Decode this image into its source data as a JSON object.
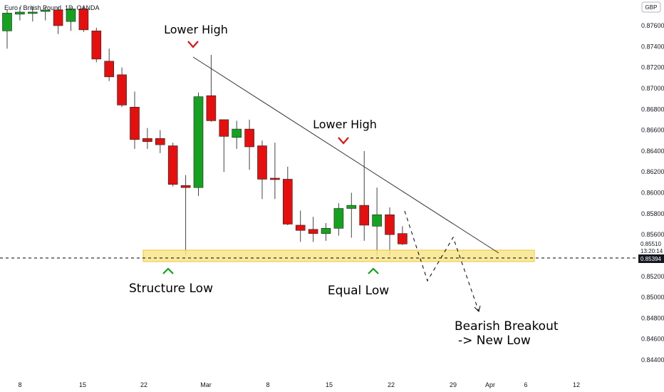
{
  "header": {
    "symbol_title": "Euro / British Pound, 1D, OANDA",
    "currency_button": "GBP"
  },
  "price_labels": {
    "current_price": "0.85510",
    "countdown": "13:20:14",
    "level_price": "0.85394"
  },
  "annotations": {
    "lower_high_1": "Lower High",
    "lower_high_2": "Lower High",
    "structure_low": "Structure Low",
    "equal_low": "Equal Low",
    "breakout_line1": "Bearish Breakout",
    "breakout_line2": "-> New Low"
  },
  "colors": {
    "up": "#16a120",
    "down": "#e41010",
    "zone_fill": "#f8e58c",
    "zone_stroke": "#f1c232",
    "marker_red": "#e41010",
    "marker_green": "#16a120",
    "badge_bg": "#131722"
  },
  "chart_data": {
    "type": "candlestick",
    "title": "Euro / British Pound, 1D, OANDA",
    "ylim": [
      0.843,
      0.8775
    ],
    "x_tick_labels": [
      "8",
      "15",
      "22",
      "Mar",
      "8",
      "15",
      "22",
      "29",
      "Apr",
      "6",
      "12"
    ],
    "y_tick_labels": [
      "0.87600",
      "0.87400",
      "0.87200",
      "0.87000",
      "0.86800",
      "0.86600",
      "0.86400",
      "0.86200",
      "0.86000",
      "0.85800",
      "0.85600",
      "0.85200",
      "0.85000",
      "0.84800",
      "0.84600",
      "0.84400"
    ],
    "candles": [
      {
        "date": "2021-02-03",
        "o": 0.8755,
        "h": 0.8775,
        "l": 0.8738,
        "c": 0.8772
      },
      {
        "date": "2021-02-04",
        "o": 0.8771,
        "h": 0.8778,
        "l": 0.8765,
        "c": 0.8773
      },
      {
        "date": "2021-02-05",
        "o": 0.8772,
        "h": 0.8778,
        "l": 0.8764,
        "c": 0.8773
      },
      {
        "date": "2021-02-08",
        "o": 0.8774,
        "h": 0.8778,
        "l": 0.8765,
        "c": 0.8775
      },
      {
        "date": "2021-02-09",
        "o": 0.8775,
        "h": 0.8778,
        "l": 0.8752,
        "c": 0.876
      },
      {
        "date": "2021-02-10",
        "o": 0.8764,
        "h": 0.8778,
        "l": 0.8755,
        "c": 0.8776
      },
      {
        "date": "2021-02-11",
        "o": 0.8776,
        "h": 0.8778,
        "l": 0.8754,
        "c": 0.8756
      },
      {
        "date": "2021-02-12",
        "o": 0.8755,
        "h": 0.8758,
        "l": 0.8725,
        "c": 0.8728
      },
      {
        "date": "2021-02-15",
        "o": 0.8726,
        "h": 0.8738,
        "l": 0.8707,
        "c": 0.8711
      },
      {
        "date": "2021-02-16",
        "o": 0.8713,
        "h": 0.872,
        "l": 0.8682,
        "c": 0.8684
      },
      {
        "date": "2021-02-17",
        "o": 0.8682,
        "h": 0.8697,
        "l": 0.8642,
        "c": 0.8651
      },
      {
        "date": "2021-02-18",
        "o": 0.8652,
        "h": 0.8662,
        "l": 0.8642,
        "c": 0.8649
      },
      {
        "date": "2021-02-19",
        "o": 0.8652,
        "h": 0.866,
        "l": 0.8638,
        "c": 0.8646
      },
      {
        "date": "2021-02-22",
        "o": 0.8645,
        "h": 0.8648,
        "l": 0.8606,
        "c": 0.8608
      },
      {
        "date": "2021-02-23",
        "o": 0.8607,
        "h": 0.8617,
        "l": 0.854,
        "c": 0.8605
      },
      {
        "date": "2021-02-24",
        "o": 0.8605,
        "h": 0.8696,
        "l": 0.8597,
        "c": 0.8692
      },
      {
        "date": "2021-02-25",
        "o": 0.8693,
        "h": 0.8732,
        "l": 0.8668,
        "c": 0.8669
      },
      {
        "date": "2021-02-26",
        "o": 0.867,
        "h": 0.867,
        "l": 0.862,
        "c": 0.8654
      },
      {
        "date": "2021-03-01",
        "o": 0.8653,
        "h": 0.8669,
        "l": 0.8642,
        "c": 0.8661
      },
      {
        "date": "2021-03-02",
        "o": 0.8661,
        "h": 0.867,
        "l": 0.8622,
        "c": 0.8644
      },
      {
        "date": "2021-03-03",
        "o": 0.8645,
        "h": 0.865,
        "l": 0.8594,
        "c": 0.8613
      },
      {
        "date": "2021-03-04",
        "o": 0.8614,
        "h": 0.8648,
        "l": 0.8594,
        "c": 0.8613
      },
      {
        "date": "2021-03-05",
        "o": 0.8613,
        "h": 0.8625,
        "l": 0.8569,
        "c": 0.857
      },
      {
        "date": "2021-03-08",
        "o": 0.8569,
        "h": 0.8583,
        "l": 0.8553,
        "c": 0.8564
      },
      {
        "date": "2021-03-09",
        "o": 0.8565,
        "h": 0.8577,
        "l": 0.8553,
        "c": 0.8561
      },
      {
        "date": "2021-03-10",
        "o": 0.8561,
        "h": 0.8571,
        "l": 0.8554,
        "c": 0.8566
      },
      {
        "date": "2021-03-11",
        "o": 0.8566,
        "h": 0.859,
        "l": 0.8559,
        "c": 0.8585
      },
      {
        "date": "2021-03-12",
        "o": 0.8585,
        "h": 0.86,
        "l": 0.8557,
        "c": 0.8588
      },
      {
        "date": "2021-03-15",
        "o": 0.8588,
        "h": 0.864,
        "l": 0.8554,
        "c": 0.8569
      },
      {
        "date": "2021-03-16",
        "o": 0.8568,
        "h": 0.8605,
        "l": 0.854,
        "c": 0.8579
      },
      {
        "date": "2021-03-17",
        "o": 0.8579,
        "h": 0.8586,
        "l": 0.854,
        "c": 0.856
      },
      {
        "date": "2021-03-18",
        "o": 0.8561,
        "h": 0.8568,
        "l": 0.855,
        "c": 0.8551
      }
    ],
    "support_zone": [
      0.8537,
      0.8549
    ],
    "horizontal_level": 0.85394,
    "trendline": [
      {
        "date": "2021-02-25",
        "price": 0.8732
      },
      {
        "date": "2021-03-31",
        "price": 0.8541
      }
    ],
    "projection_path": [
      {
        "date": "2021-03-22",
        "price": 0.8585
      },
      {
        "date": "2021-03-26",
        "price": 0.852
      },
      {
        "date": "2021-03-30",
        "price": 0.8558
      },
      {
        "date": "2021-04-01",
        "price": 0.8485
      }
    ]
  }
}
